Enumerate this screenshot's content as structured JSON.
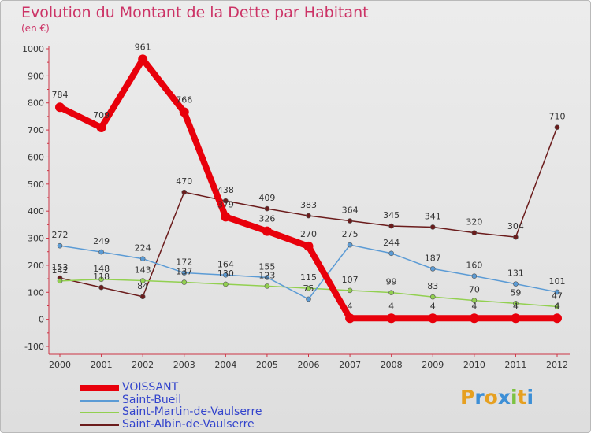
{
  "title": "Evolution du Montant de la Dette par Habitant",
  "unit": "(en €)",
  "brand": [
    "P",
    "r",
    "o",
    "x",
    "i",
    "t",
    "i"
  ],
  "brand_colors": [
    "#e6a020",
    "#3d8fd6",
    "#e6a020",
    "#3d8fd6",
    "#7cc242",
    "#e6a020",
    "#3d8fd6"
  ],
  "chart_data": {
    "type": "line",
    "title": "Evolution du Montant de la Dette par Habitant",
    "ylabel": "(en €)",
    "xlabel": "",
    "x": [
      "2000",
      "2001",
      "2002",
      "2003",
      "2004",
      "2005",
      "2006",
      "2007",
      "2008",
      "2009",
      "2010",
      "2011",
      "2012"
    ],
    "ylim": [
      -100,
      1000
    ],
    "yticks": [
      "-100",
      "0",
      "100",
      "200",
      "300",
      "400",
      "500",
      "600",
      "700",
      "800",
      "900",
      "1000"
    ],
    "grid": false,
    "legend_position": "bottom-left",
    "series": [
      {
        "name": "VOISSANT",
        "color": "#e8000b",
        "width": 8,
        "marker": 6,
        "values": [
          784,
          709,
          961,
          766,
          379,
          326,
          270,
          4,
          4,
          4,
          4,
          4,
          4
        ],
        "labels": [
          "784",
          "709",
          "961",
          "766",
          "379",
          "326",
          "270",
          "4",
          "4",
          "4",
          "4",
          "4",
          "4"
        ]
      },
      {
        "name": "Saint-Bueil",
        "color": "#5b9bd5",
        "width": 1.5,
        "marker": 3,
        "values": [
          272,
          249,
          224,
          172,
          164,
          155,
          75,
          275,
          244,
          187,
          160,
          131,
          101
        ],
        "labels": [
          "272",
          "249",
          "224",
          "172",
          "164",
          "155",
          "75",
          "275",
          "244",
          "187",
          "160",
          "131",
          "101"
        ]
      },
      {
        "name": "Saint-Martin-de-Vaulserre",
        "color": "#92d050",
        "width": 1.5,
        "marker": 3,
        "values": [
          142,
          148,
          143,
          137,
          130,
          123,
          115,
          107,
          99,
          83,
          70,
          59,
          47
        ],
        "labels": [
          "142",
          "148",
          "143",
          "137",
          "130",
          "123",
          "115",
          "107",
          "99",
          "83",
          "70",
          "59",
          "47"
        ]
      },
      {
        "name": "Saint-Albin-de-Vaulserre",
        "color": "#6b1c1c",
        "width": 1.5,
        "marker": 3,
        "values": [
          153,
          118,
          84,
          470,
          438,
          409,
          383,
          364,
          345,
          341,
          320,
          304,
          710
        ],
        "labels": [
          "153",
          "118",
          "84",
          "470",
          "438",
          "409",
          "383",
          "364",
          "345",
          "341",
          "320",
          "304",
          "710"
        ]
      }
    ]
  }
}
